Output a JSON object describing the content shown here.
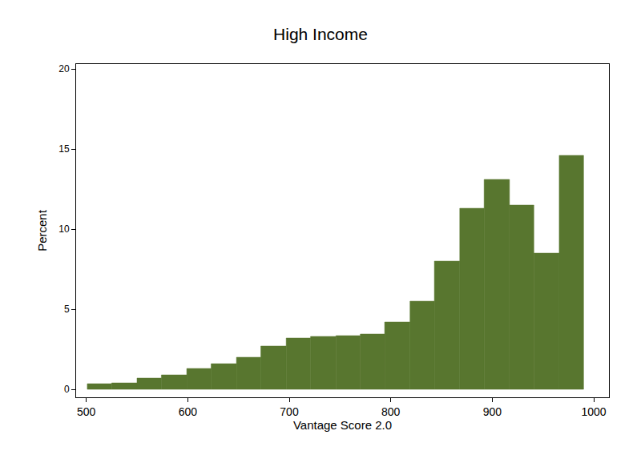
{
  "chart_data": {
    "type": "histogram",
    "title": "High Income",
    "x_label": "Vantage Score 2.0",
    "y_label": "Percent",
    "bins": [
      501,
      525,
      550,
      574,
      599,
      623,
      648,
      672,
      697,
      721,
      746,
      770,
      794,
      819,
      843,
      868,
      892,
      917,
      941,
      966,
      990
    ],
    "values": [
      0.35,
      0.4,
      0.7,
      0.9,
      1.3,
      1.6,
      2.0,
      2.7,
      3.2,
      3.3,
      3.35,
      3.45,
      4.2,
      5.5,
      8.0,
      11.3,
      13.1,
      11.5,
      8.5,
      14.6
    ],
    "color": "#58762f",
    "xlim": [
      490,
      1015
    ],
    "xticks": [
      500,
      600,
      700,
      800,
      900,
      1000
    ],
    "ylim": [
      -0.5,
      20.3
    ],
    "yticks": [
      0,
      5,
      10,
      15,
      20
    ],
    "grid": false
  }
}
